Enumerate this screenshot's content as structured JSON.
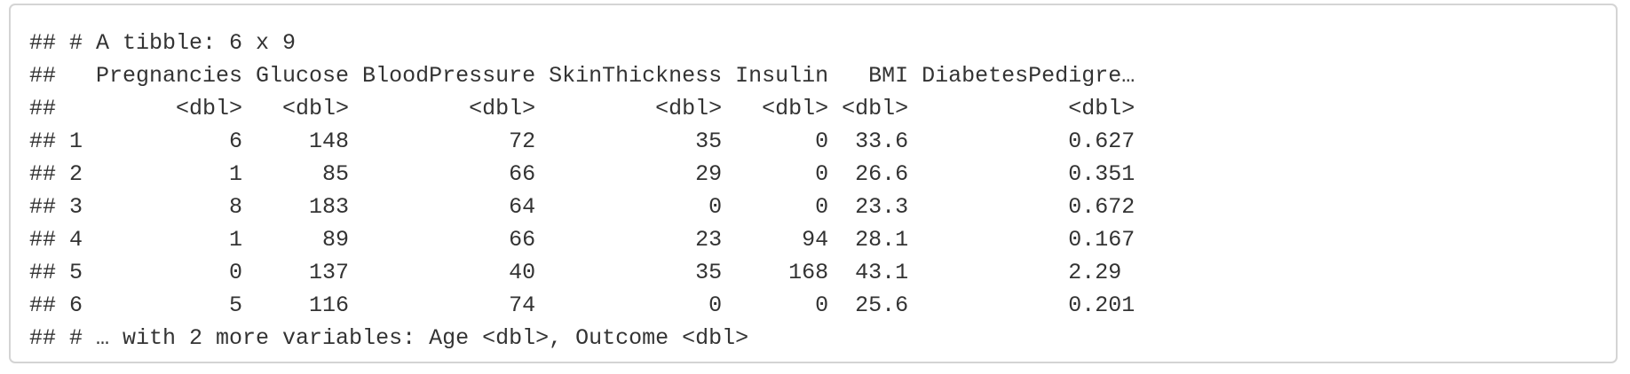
{
  "output": {
    "lines": [
      "## # A tibble: 6 x 9",
      "##   Pregnancies Glucose BloodPressure SkinThickness Insulin   BMI DiabetesPedigre…",
      "##         <dbl>   <dbl>         <dbl>         <dbl>   <dbl> <dbl>            <dbl>",
      "## 1           6     148            72            35       0  33.6            0.627",
      "## 2           1      85            66            29       0  26.6            0.351",
      "## 3           8     183            64             0       0  23.3            0.672",
      "## 4           1      89            66            23      94  28.1            0.167",
      "## 5           0     137            40            35     168  43.1            2.29 ",
      "## 6           5     116            74             0       0  25.6            0.201",
      "## # … with 2 more variables: Age <dbl>, Outcome <dbl>"
    ]
  }
}
